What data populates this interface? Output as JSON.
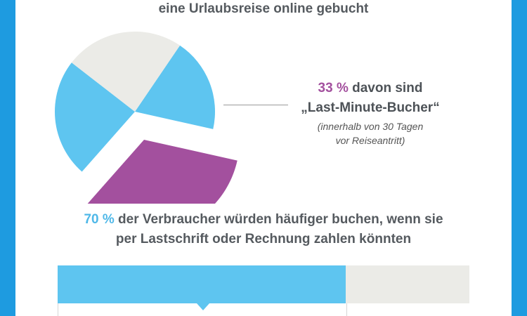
{
  "headline": "eine Urlaubsreise online gebucht",
  "callout": {
    "percent": "33 %",
    "text_after_percent": " davon sind",
    "label": "„Last-Minute-Bucher“",
    "note_line1": "(innerhalb von 30 Tagen",
    "note_line2": "vor Reiseantritt)"
  },
  "stat": {
    "percent": "70 %",
    "text_line1": " der Verbraucher würden häufiger buchen, wenn sie",
    "text_line2": "per Lastschrift oder Rechnung zahlen könnten"
  },
  "colors": {
    "background": "#1e9be0",
    "blue": "#5ec5f0",
    "purple": "#a3509e",
    "grey": "#ebebe7"
  },
  "chart_data": [
    {
      "type": "pie",
      "slices": [
        {
          "value": 19,
          "color": "#5ec5f0"
        },
        {
          "value": 33,
          "color": "#a3509e",
          "exploded": true
        },
        {
          "value": 24,
          "color": "#5ec5f0"
        },
        {
          "value": 24,
          "color": "#ebebe7"
        }
      ]
    },
    {
      "type": "bar",
      "values": [
        70
      ],
      "max": 100,
      "color": "#5ec5f0",
      "track_color": "#ebebe7"
    }
  ]
}
